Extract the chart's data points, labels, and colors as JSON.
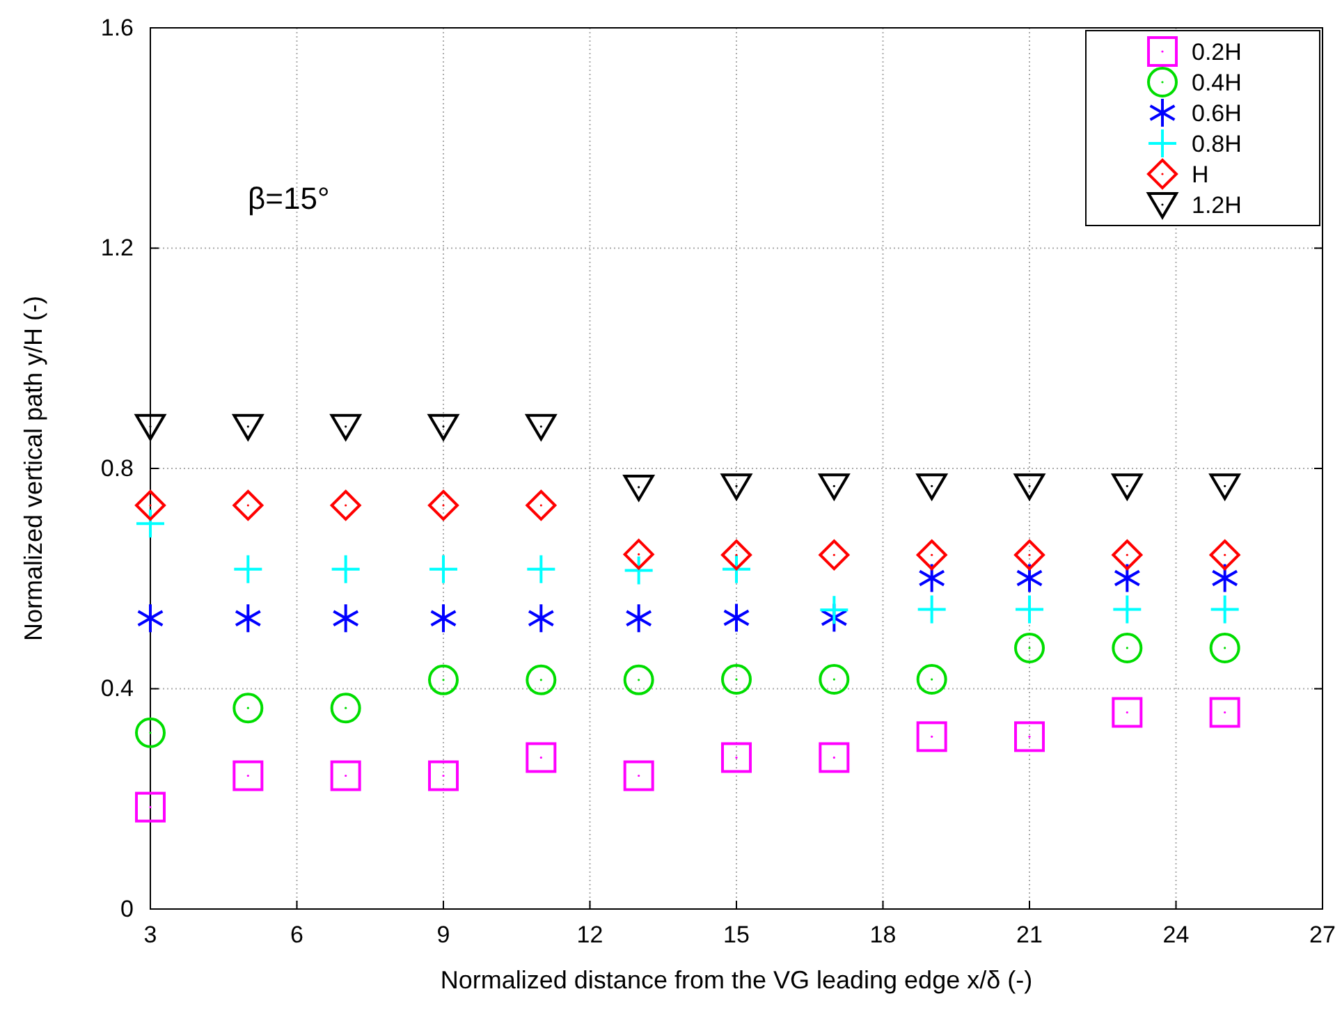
{
  "chart_data": {
    "type": "scatter",
    "xlabel": "Normalized distance from the VG leading edge x/δ (-)",
    "ylabel": "Normalized vertical path y/H (-)",
    "x": [
      3,
      5,
      7,
      9,
      11,
      13,
      15,
      17,
      19,
      21,
      23,
      25
    ],
    "xlim": [
      3,
      27
    ],
    "xticks": [
      3,
      6,
      9,
      12,
      15,
      18,
      21,
      24,
      27
    ],
    "ylim": [
      0,
      1.6
    ],
    "yticks": [
      0,
      0.4,
      0.8,
      1.2,
      1.6
    ],
    "grid": true,
    "legend": "top right",
    "annotations": [
      "β=15°"
    ],
    "series": [
      {
        "name": "0.2H",
        "color": "#ff00ff",
        "marker": "square",
        "values": [
          0.185,
          0.242,
          0.242,
          0.242,
          0.275,
          0.242,
          0.275,
          0.275,
          0.313,
          0.313,
          0.357,
          0.357
        ]
      },
      {
        "name": "0.4H",
        "color": "#00dd00",
        "marker": "circle",
        "values": [
          0.32,
          0.365,
          0.365,
          0.416,
          0.416,
          0.416,
          0.417,
          0.417,
          0.417,
          0.474,
          0.474,
          0.474
        ]
      },
      {
        "name": "0.6H",
        "color": "#0000ff",
        "values": [
          0.528,
          0.528,
          0.528,
          0.528,
          0.528,
          0.528,
          0.529,
          0.529,
          0.601,
          0.601,
          0.601,
          0.601
        ]
      },
      {
        "name": "0.8H",
        "color": "#00ffff",
        "marker": "cross",
        "values": [
          0.7,
          0.617,
          0.617,
          0.617,
          0.617,
          0.615,
          0.617,
          0.543,
          0.544,
          0.544,
          0.544,
          0.544
        ]
      },
      {
        "name": "H",
        "color": "#ff0000",
        "marker": "diamond",
        "values": [
          0.733,
          0.733,
          0.733,
          0.733,
          0.733,
          0.644,
          0.643,
          0.643,
          0.643,
          0.643,
          0.643,
          0.643
        ]
      },
      {
        "name": "1.2H",
        "color": "#000000",
        "marker": "triangle",
        "values": [
          0.876,
          0.876,
          0.876,
          0.876,
          0.876,
          0.766,
          0.768,
          0.768,
          0.768,
          0.768,
          0.768,
          0.768
        ]
      }
    ]
  }
}
